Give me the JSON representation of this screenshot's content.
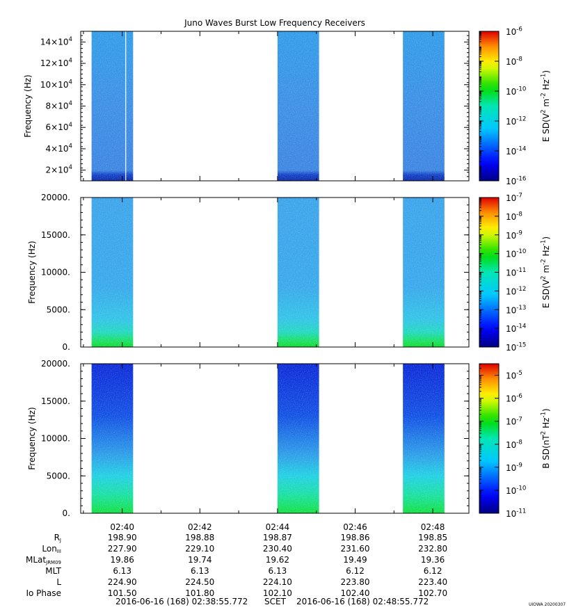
{
  "chart_data": {
    "title": "Juno Waves Burst Low Frequency Receivers",
    "type": "heatmap",
    "x_axis": {
      "tick_labels": [
        "02:40",
        "02:42",
        "02:44",
        "02:46",
        "02:48"
      ],
      "tick_minutes": [
        1.07,
        3.07,
        5.07,
        7.07,
        9.07
      ],
      "range_minutes": [
        0,
        10
      ],
      "data_blocks_minutes": [
        [
          0.28,
          1.35
        ],
        [
          5.07,
          6.14
        ],
        [
          8.3,
          9.37
        ]
      ]
    },
    "panels": [
      {
        "ylabel": "Frequency (Hz)",
        "ylim": [
          10000,
          150000
        ],
        "yticks": [
          20000,
          40000,
          60000,
          80000,
          100000,
          120000,
          140000
        ],
        "ytick_labels": [
          [
            "2",
            "4"
          ],
          [
            "4",
            "4"
          ],
          [
            "6",
            "4"
          ],
          [
            "8",
            "4"
          ],
          [
            "10",
            "4"
          ],
          [
            "12",
            "4"
          ],
          [
            "14",
            "4"
          ]
        ],
        "colorbar_label": [
          "E SD(V",
          "2",
          " m",
          "-2",
          " Hz",
          "-1",
          ")"
        ],
        "colorbar_ticks": [
          [
            "10",
            "-6"
          ],
          [
            "10",
            "-8"
          ],
          [
            "10",
            "-10"
          ],
          [
            "10",
            "-12"
          ],
          [
            "10",
            "-14"
          ],
          [
            "10",
            "-16"
          ]
        ],
        "colorbar_log_range": [
          -16,
          -6
        ]
      },
      {
        "ylabel": "Frequency (Hz)",
        "ylim": [
          0,
          20000
        ],
        "yticks": [
          0,
          5000,
          10000,
          15000,
          20000
        ],
        "ytick_labels": [
          "0.",
          "5000.",
          "10000.",
          "15000.",
          "20000."
        ],
        "colorbar_label": [
          "E SD(V",
          "2",
          " m",
          "-2",
          " Hz",
          "-1",
          ")"
        ],
        "colorbar_ticks": [
          [
            "10",
            "-7"
          ],
          [
            "10",
            "-8"
          ],
          [
            "10",
            "-9"
          ],
          [
            "10",
            "-10"
          ],
          [
            "10",
            "-11"
          ],
          [
            "10",
            "-12"
          ],
          [
            "10",
            "-13"
          ],
          [
            "10",
            "-14"
          ],
          [
            "10",
            "-15"
          ]
        ],
        "colorbar_log_range": [
          -15,
          -7
        ]
      },
      {
        "ylabel": "Frequency (Hz)",
        "ylim": [
          0,
          20000
        ],
        "yticks": [
          0,
          5000,
          10000,
          15000,
          20000
        ],
        "ytick_labels": [
          "0.",
          "5000.",
          "10000.",
          "15000.",
          "20000."
        ],
        "colorbar_label": [
          "B SD(nT",
          "2",
          " Hz",
          "-1",
          ")"
        ],
        "colorbar_ticks": [
          [
            "10",
            "-5"
          ],
          [
            "10",
            "-6"
          ],
          [
            "10",
            "-7"
          ],
          [
            "10",
            "-8"
          ],
          [
            "10",
            "-9"
          ],
          [
            "10",
            "-10"
          ],
          [
            "10",
            "-11"
          ]
        ],
        "colorbar_log_range": [
          -11,
          -4.5
        ]
      }
    ],
    "ephemeris": {
      "rows": [
        {
          "label": "R",
          "sub": "J",
          "values": [
            "198.90",
            "198.88",
            "198.87",
            "198.86",
            "198.85"
          ]
        },
        {
          "label": "Lon",
          "sub": "III",
          "values": [
            "227.90",
            "229.10",
            "230.40",
            "231.60",
            "232.80"
          ]
        },
        {
          "label": "MLat",
          "sub": "JRM09",
          "values": [
            "19.86",
            "19.74",
            "19.62",
            "19.49",
            "19.36"
          ]
        },
        {
          "label": "MLT",
          "sub": "",
          "values": [
            "6.13",
            "6.13",
            "6.13",
            "6.12",
            "6.12"
          ]
        },
        {
          "label": "L",
          "sub": "",
          "values": [
            "224.90",
            "224.50",
            "224.10",
            "223.80",
            "223.40"
          ]
        },
        {
          "label": "Io Phase",
          "sub": "",
          "values": [
            "101.50",
            "101.80",
            "102.10",
            "102.40",
            "102.70"
          ]
        }
      ]
    },
    "footer": {
      "start": "2016-06-16 (168) 02:38:55.772",
      "scet": "SCET",
      "end": "2016-06-16 (168) 02:48:55.772"
    },
    "stamp": "UIOWA 20200307"
  }
}
